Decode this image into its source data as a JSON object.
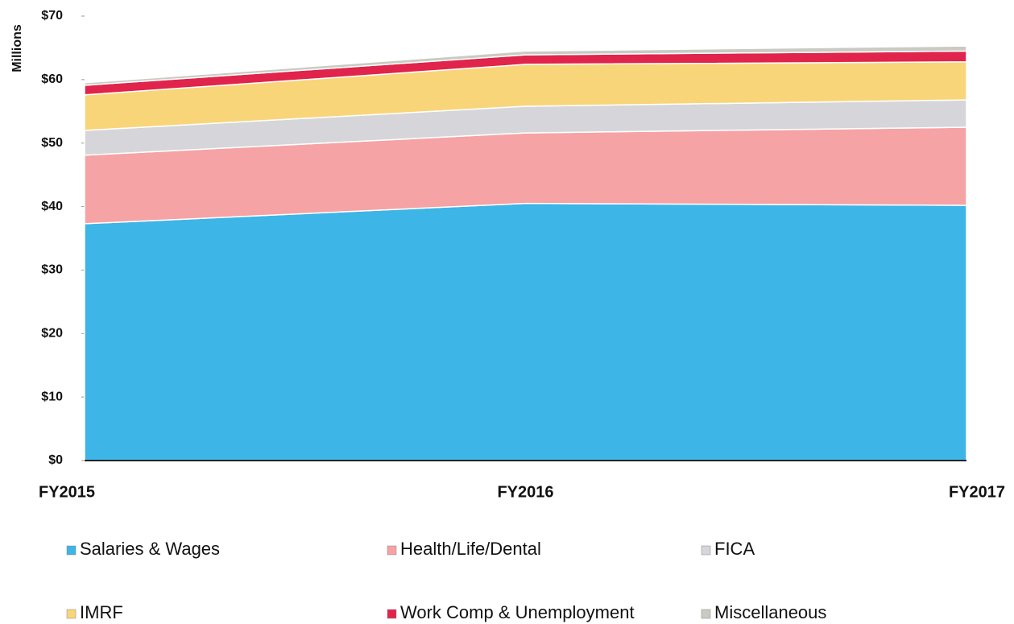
{
  "chart_data": {
    "type": "stacked_area",
    "y_label": "Millions",
    "categories": [
      "FY2015",
      "FY2016",
      "FY2017"
    ],
    "series": [
      {
        "name": "Salaries & Wages",
        "color": "#3db5e6",
        "values": [
          37.3,
          40.5,
          40.2
        ]
      },
      {
        "name": "Health/Life/Dental",
        "color": "#f5a3a5",
        "values": [
          10.8,
          11.1,
          12.3
        ]
      },
      {
        "name": "FICA",
        "color": "#d6d6da",
        "values": [
          3.9,
          4.2,
          4.3
        ]
      },
      {
        "name": "IMRF",
        "color": "#f9d57a",
        "values": [
          5.6,
          6.6,
          6.0
        ]
      },
      {
        "name": "Work Comp & Unemployment",
        "color": "#e0244c",
        "values": [
          1.5,
          1.5,
          1.7
        ]
      },
      {
        "name": "Miscellaneous",
        "color": "#c9cbc2",
        "values": [
          0.4,
          0.6,
          0.8
        ]
      }
    ],
    "ylim": [
      0,
      70
    ],
    "yticks": [
      {
        "value": 0,
        "label": "$0"
      },
      {
        "value": 10,
        "label": "$10"
      },
      {
        "value": 20,
        "label": "$20"
      },
      {
        "value": 30,
        "label": "$30"
      },
      {
        "value": 40,
        "label": "$40"
      },
      {
        "value": 50,
        "label": "$50"
      },
      {
        "value": 60,
        "label": "$60"
      },
      {
        "value": 70,
        "label": "$70"
      }
    ],
    "legend": "bottom"
  }
}
